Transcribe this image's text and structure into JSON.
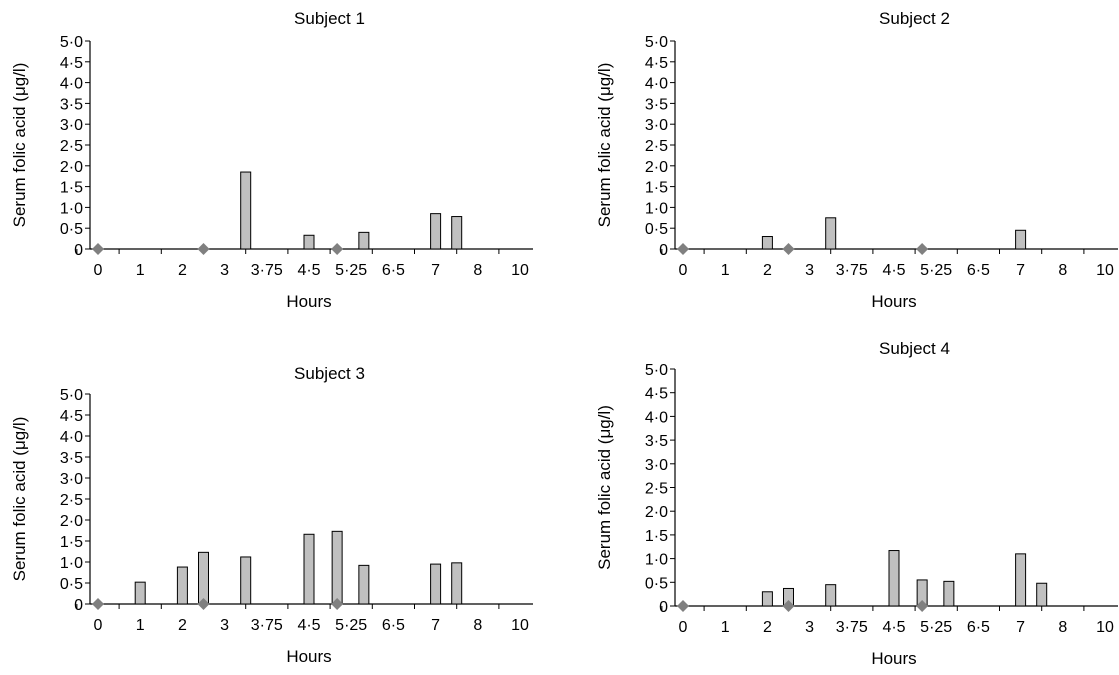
{
  "chart_data": [
    {
      "type": "bar",
      "title": "Subject 1",
      "xlabel": "Hours",
      "ylabel": "Serum folic acid (μg/l)",
      "ylim": [
        0,
        5.0
      ],
      "yticks": [
        "0",
        "0·5",
        "1·0",
        "1·5",
        "2·0",
        "2·5",
        "3·0",
        "3·5",
        "4·0",
        "4·5",
        "5·0"
      ],
      "x_ticks": [
        "0",
        "1",
        "2",
        "3",
        "3·75",
        "4·5",
        "5·25",
        "6·5",
        "7",
        "8",
        "10"
      ],
      "bars": [
        {
          "x": 3.375,
          "value": 1.85
        },
        {
          "x": 4.5,
          "value": 0.33
        },
        {
          "x": 5.625,
          "value": 0.4
        },
        {
          "x": 7.0,
          "value": 0.85
        },
        {
          "x": 7.5,
          "value": 0.78
        }
      ],
      "markers": [
        {
          "x": 0,
          "value": 0
        },
        {
          "x": 2.5,
          "value": 0
        },
        {
          "x": 5.0,
          "value": 0
        }
      ],
      "bar_color": "#c0c0c0",
      "marker_color": "#808080",
      "grid": false
    },
    {
      "type": "bar",
      "title": "Subject 2",
      "xlabel": "Hours",
      "ylabel": "Serum folic acid (μg/l)",
      "ylim": [
        0,
        5.0
      ],
      "yticks": [
        "0",
        "0·5",
        "1·0",
        "1·5",
        "2·0",
        "2·5",
        "3·0",
        "3·5",
        "4·0",
        "4·5",
        "5·0"
      ],
      "x_ticks": [
        "0",
        "1",
        "2",
        "3",
        "3·75",
        "4·5",
        "5·25",
        "6·5",
        "7",
        "8",
        "10"
      ],
      "bars": [
        {
          "x": 2.0,
          "value": 0.3
        },
        {
          "x": 3.375,
          "value": 0.75
        },
        {
          "x": 7.0,
          "value": 0.45
        }
      ],
      "markers": [
        {
          "x": 0,
          "value": 0
        },
        {
          "x": 2.5,
          "value": 0
        },
        {
          "x": 5.0,
          "value": 0
        }
      ],
      "bar_color": "#c0c0c0",
      "marker_color": "#808080",
      "grid": false
    },
    {
      "type": "bar",
      "title": "Subject 3",
      "xlabel": "Hours",
      "ylabel": "Serum folic acid (μg/l)",
      "ylim": [
        0,
        5.0
      ],
      "yticks": [
        "0",
        "0·5",
        "1·0",
        "1·5",
        "2·0",
        "2·5",
        "3·0",
        "3·5",
        "4·0",
        "4·5",
        "5·0"
      ],
      "x_ticks": [
        "0",
        "1",
        "2",
        "3",
        "3·75",
        "4·5",
        "5·25",
        "6·5",
        "7",
        "8",
        "10"
      ],
      "bars": [
        {
          "x": 1.0,
          "value": 0.52
        },
        {
          "x": 2.0,
          "value": 0.88
        },
        {
          "x": 2.5,
          "value": 1.23
        },
        {
          "x": 3.375,
          "value": 1.12
        },
        {
          "x": 4.5,
          "value": 1.66
        },
        {
          "x": 5.0,
          "value": 1.73
        },
        {
          "x": 5.625,
          "value": 0.92
        },
        {
          "x": 7.0,
          "value": 0.95
        },
        {
          "x": 7.5,
          "value": 0.98
        }
      ],
      "markers": [
        {
          "x": 0,
          "value": 0
        },
        {
          "x": 2.5,
          "value": 0
        },
        {
          "x": 5.0,
          "value": 0
        }
      ],
      "bar_color": "#c0c0c0",
      "marker_color": "#808080",
      "grid": false
    },
    {
      "type": "bar",
      "title": "Subject 4",
      "xlabel": "Hours",
      "ylabel": "Serum folic acid (μg/l)",
      "ylim": [
        0,
        5.0
      ],
      "yticks": [
        "0",
        "0·5",
        "1·0",
        "1·5",
        "2·0",
        "2·5",
        "3·0",
        "3·5",
        "4·0",
        "4·5",
        "5·0"
      ],
      "x_ticks": [
        "0",
        "1",
        "2",
        "3",
        "3·75",
        "4·5",
        "5·25",
        "6·5",
        "7",
        "8",
        "10"
      ],
      "bars": [
        {
          "x": 2.0,
          "value": 0.3
        },
        {
          "x": 2.5,
          "value": 0.37
        },
        {
          "x": 3.375,
          "value": 0.45
        },
        {
          "x": 4.5,
          "value": 1.17
        },
        {
          "x": 5.0,
          "value": 0.55
        },
        {
          "x": 5.625,
          "value": 0.52
        },
        {
          "x": 7.0,
          "value": 1.1
        },
        {
          "x": 7.5,
          "value": 0.48
        }
      ],
      "markers": [
        {
          "x": 0,
          "value": 0
        },
        {
          "x": 2.5,
          "value": 0
        },
        {
          "x": 5.0,
          "value": 0
        }
      ],
      "bar_color": "#c0c0c0",
      "marker_color": "#808080",
      "grid": false
    }
  ]
}
